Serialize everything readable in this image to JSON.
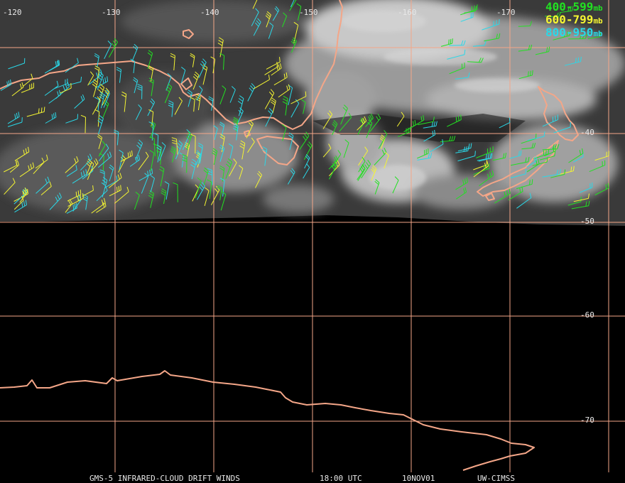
{
  "map": {
    "longitude_labels": [
      "-120",
      "-130",
      "-140",
      "-150",
      "-160",
      "-170"
    ],
    "latitude_labels": [
      "-40",
      "-50",
      "-60",
      "-70"
    ],
    "grid_color": "#f4a688",
    "coast_color": "#f4a688"
  },
  "legend": [
    {
      "label": "400-599",
      "unit": "mb",
      "color": "#22e022"
    },
    {
      "label": "600-799",
      "unit": "mb",
      "color": "#f4f432"
    },
    {
      "label": "800-950",
      "unit": "mb",
      "color": "#2ad8e8"
    }
  ],
  "footer": {
    "product": "GMS-5 INFRARED-CLOUD DRIFT WINDS",
    "time": "18:00 UTC",
    "date": "10NOV01",
    "source": "UW-CIMSS"
  }
}
